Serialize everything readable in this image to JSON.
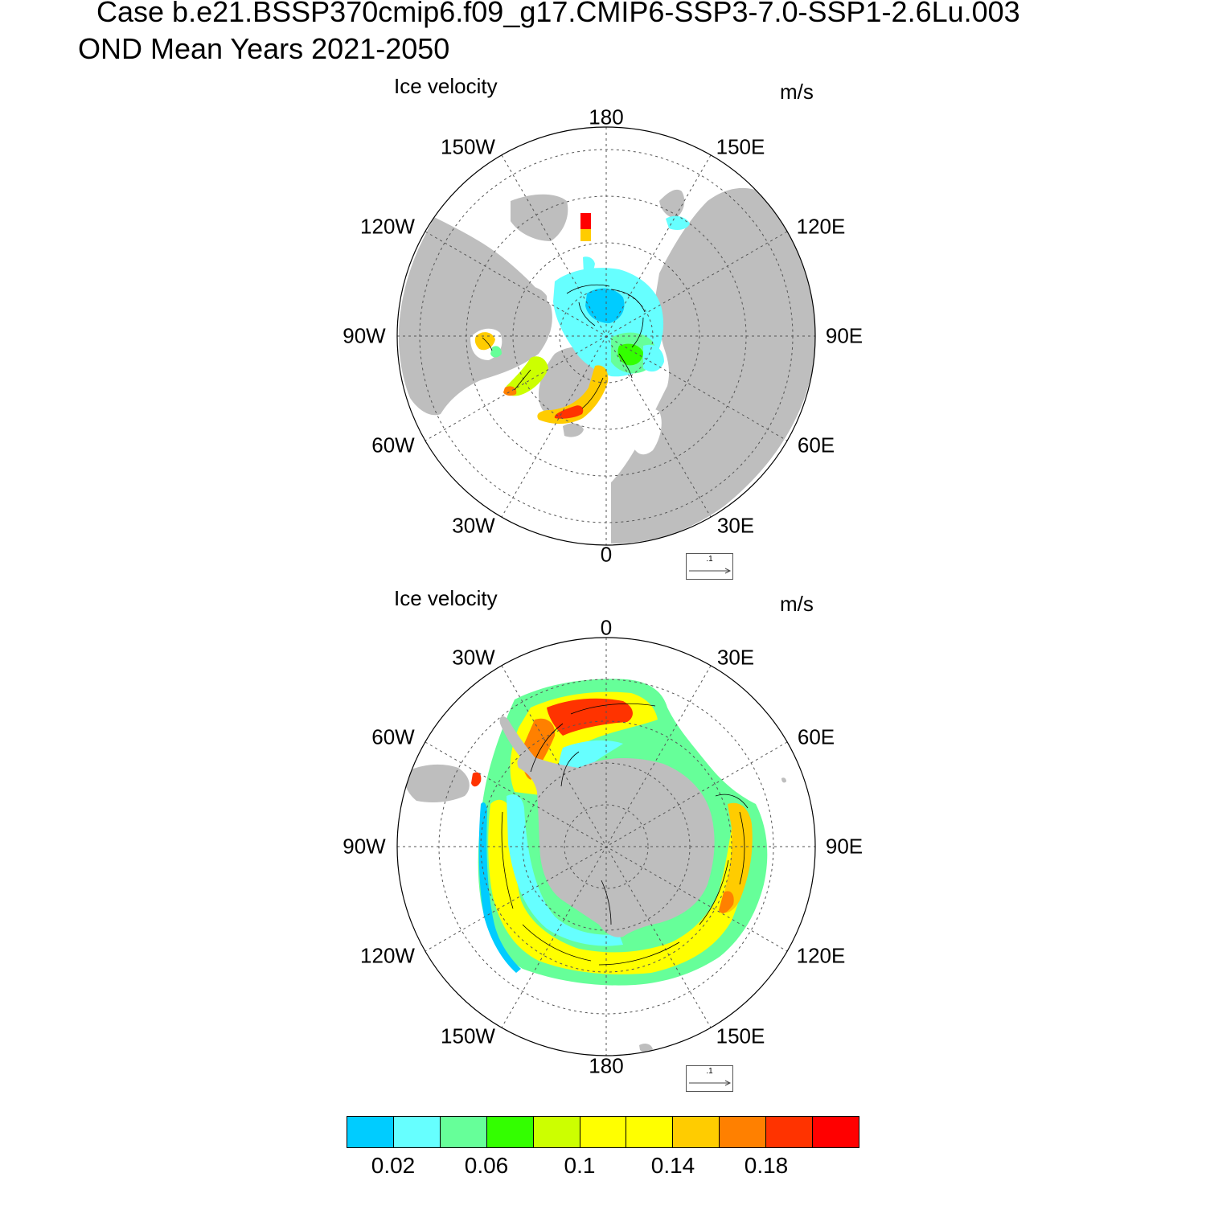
{
  "header": {
    "line1": "Case b.e21.BSSP370cmip6.f09_g17.CMIP6-SSP3-7.0-SSP1-2.6Lu.003",
    "line2": "OND Mean   Years 2021-2050"
  },
  "colors": {
    "land": "#bebebe",
    "grid": "#555555"
  },
  "panels": [
    {
      "id": "north",
      "left_label": "Ice velocity",
      "right_label": "m/s",
      "ref_vector_label": ".1",
      "lon_labels": [
        "180",
        "150E",
        "120E",
        "90E",
        "60E",
        "30E",
        "0",
        "30W",
        "60W",
        "90W",
        "120W",
        "150W"
      ]
    },
    {
      "id": "south",
      "left_label": "Ice velocity",
      "right_label": "m/s",
      "ref_vector_label": ".1",
      "lon_labels": [
        "0",
        "30E",
        "60E",
        "90E",
        "120E",
        "150E",
        "180",
        "150W",
        "120W",
        "90W",
        "60W",
        "30W"
      ]
    }
  ],
  "colorbar": {
    "colors": [
      "#00ccff",
      "#66ffff",
      "#66ff99",
      "#33ff00",
      "#ccff00",
      "#ffff00",
      "#ffff00",
      "#ffcc00",
      "#ff8000",
      "#ff3300",
      "#ff0000"
    ],
    "labels": [
      "0.02",
      "0.06",
      "0.1",
      "0.14",
      "0.18"
    ]
  }
}
